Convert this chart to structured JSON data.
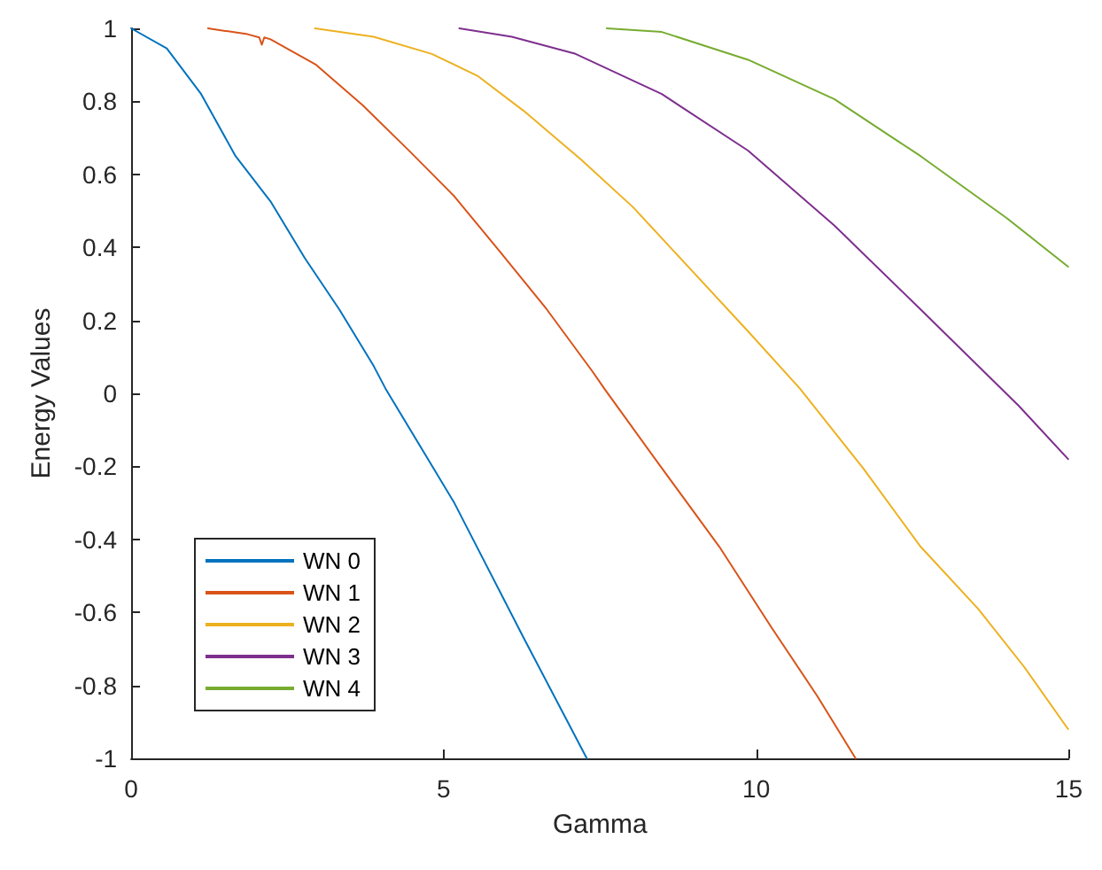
{
  "chart_data": {
    "type": "line",
    "xlabel": "Gamma",
    "ylabel": "Energy Values",
    "xlim": [
      0,
      15
    ],
    "xticks": [
      0,
      5,
      10,
      15
    ],
    "ylim": [
      -1,
      1
    ],
    "yticks": [
      -1,
      -0.8,
      -0.6,
      -0.4,
      -0.2,
      0,
      0.2,
      0.4,
      0.6,
      0.8,
      1
    ],
    "grid": false,
    "legend": "bottom left",
    "marker": "none",
    "line_style": "solid",
    "series": [
      {
        "name": "WN 0",
        "color": "#0072bd",
        "x": [
          0,
          0.57,
          1.12,
          1.67,
          2.23,
          2.78,
          3.33,
          3.88,
          4.07,
          5.17,
          6.28,
          7.29
        ],
        "values": [
          1,
          0.945,
          0.82,
          0.65,
          0.526,
          0.37,
          0.23,
          0.075,
          0.013,
          -0.3,
          -0.67,
          -1
        ]
      },
      {
        "name": "WN 1",
        "color": "#d95319",
        "x": [
          1.23,
          1.86,
          2.05,
          2.09,
          2.13,
          2.23,
          2.96,
          3.7,
          4.44,
          5.17,
          5.91,
          6.65,
          7.38,
          7.57,
          8.49,
          9.41,
          10.24,
          10.98,
          11.59
        ],
        "values": [
          1,
          0.984,
          0.975,
          0.955,
          0.975,
          0.97,
          0.9,
          0.79,
          0.666,
          0.54,
          0.386,
          0.23,
          0.06,
          0.013,
          -0.205,
          -0.42,
          -0.64,
          -0.83,
          -1
        ]
      },
      {
        "name": "WN 2",
        "color": "#edb120",
        "x": [
          2.94,
          3.88,
          4.81,
          5.54,
          6.28,
          7.2,
          8.03,
          8.95,
          9.87,
          10.7,
          11.71,
          12.63,
          13.55,
          14.29,
          14.99
        ],
        "values": [
          1,
          0.977,
          0.93,
          0.87,
          0.774,
          0.64,
          0.51,
          0.34,
          0.17,
          0.013,
          -0.205,
          -0.42,
          -0.59,
          -0.75,
          -0.92
        ]
      },
      {
        "name": "WN 3",
        "color": "#7e2f8e",
        "x": [
          5.25,
          6.09,
          7.11,
          8.49,
          9.87,
          11.25,
          12.63,
          14.2,
          14.99
        ],
        "values": [
          1,
          0.977,
          0.93,
          0.82,
          0.665,
          0.46,
          0.23,
          -0.034,
          -0.18
        ]
      },
      {
        "name": "WN 4",
        "color": "#77ac30",
        "x": [
          7.61,
          8.49,
          9.87,
          11.25,
          12.63,
          14.01,
          14.99
        ],
        "values": [
          1,
          0.99,
          0.914,
          0.806,
          0.65,
          0.48,
          0.347
        ]
      }
    ]
  }
}
